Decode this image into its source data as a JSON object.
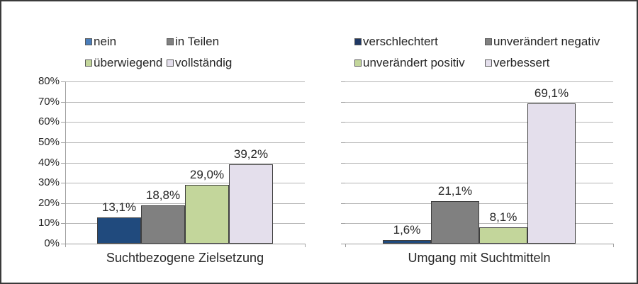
{
  "figure": {
    "background_color": "#FFFFFF",
    "border_color": "#3A3A3A",
    "gridline_color": "#B5B5B5",
    "axis_color": "#A0A0A0",
    "text_color": "#262626"
  },
  "chart_data": [
    {
      "type": "bar",
      "title": "",
      "xlabel": "Suchtbezogene Zielsetzung",
      "ylabel": "",
      "ylim": [
        0,
        80
      ],
      "grid": true,
      "legend_position": "top",
      "show_ytick_labels": true,
      "ytick_labels": [
        "0%",
        "10%",
        "20%",
        "30%",
        "40%",
        "50%",
        "60%",
        "70%",
        "80%"
      ],
      "categories": [
        "Suchtbezogene Zielsetzung"
      ],
      "series": [
        {
          "name": "nein",
          "value": 13.1,
          "data_label": "13,1%",
          "color": "#204A7D",
          "legend_marker_color": "#4A7EBB"
        },
        {
          "name": "in Teilen",
          "value": 18.8,
          "data_label": "18,8%",
          "color": "#808080",
          "legend_marker_color": "#808080"
        },
        {
          "name": "überwiegend",
          "value": 29.0,
          "data_label": "29,0%",
          "color": "#C3D69B",
          "legend_marker_color": "#C3D69B"
        },
        {
          "name": "vollständig",
          "value": 39.2,
          "data_label": "39,2%",
          "color": "#E4DFEC",
          "legend_marker_color": "#E4DFEC"
        }
      ]
    },
    {
      "type": "bar",
      "title": "",
      "xlabel": "Umgang mit Suchtmitteln",
      "ylabel": "",
      "ylim": [
        0,
        80
      ],
      "grid": true,
      "legend_position": "top",
      "show_ytick_labels": false,
      "ytick_labels": [
        "0%",
        "10%",
        "20%",
        "30%",
        "40%",
        "50%",
        "60%",
        "70%",
        "80%"
      ],
      "categories": [
        "Umgang mit Suchtmitteln"
      ],
      "series": [
        {
          "name": "verschlechtert",
          "value": 1.6,
          "data_label": "1,6%",
          "color": "#204A7D",
          "legend_marker_color": "#1F3864"
        },
        {
          "name": "unverändert negativ",
          "value": 21.1,
          "data_label": "21,1%",
          "color": "#808080",
          "legend_marker_color": "#808080"
        },
        {
          "name": "unverändert positiv",
          "value": 8.1,
          "data_label": "8,1%",
          "color": "#C3D69B",
          "legend_marker_color": "#C3D69B"
        },
        {
          "name": "verbessert",
          "value": 69.1,
          "data_label": "69,1%",
          "color": "#E4DFEC",
          "legend_marker_color": "#E4DFEC"
        }
      ]
    }
  ]
}
